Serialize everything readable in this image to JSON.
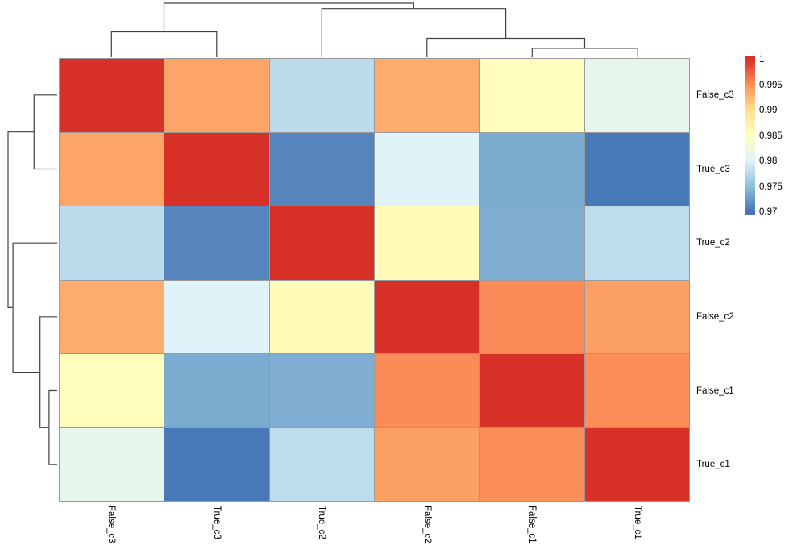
{
  "chart_data": {
    "type": "heatmap",
    "title": "",
    "rows": [
      "False_c3",
      "True_c3",
      "True_c2",
      "False_c2",
      "False_c1",
      "True_c1"
    ],
    "columns": [
      "False_c3",
      "True_c3",
      "True_c2",
      "False_c2",
      "False_c1",
      "True_c1"
    ],
    "matrix": [
      [
        1.0,
        0.9935,
        0.9773,
        0.993,
        0.9851,
        0.9808
      ],
      [
        0.9935,
        1.0,
        0.9706,
        0.9797,
        0.9732,
        0.9697
      ],
      [
        0.9773,
        0.9706,
        1.0,
        0.9853,
        0.9734,
        0.9775
      ],
      [
        0.993,
        0.9797,
        0.9853,
        1.0,
        0.995,
        0.9938
      ],
      [
        0.9851,
        0.9732,
        0.9734,
        0.995,
        1.0,
        0.9949
      ],
      [
        0.9808,
        0.9697,
        0.9775,
        0.9938,
        0.9949,
        1.0
      ]
    ],
    "color_scale": {
      "min": 0.9695,
      "max": 1.0,
      "palette_low_to_high": [
        "#4575B4",
        "#91BFDB",
        "#E0F3F8",
        "#FFFFBF",
        "#FEE090",
        "#FC8D59",
        "#D73027"
      ]
    },
    "legend": {
      "position": "right",
      "ticks": [
        "1",
        "0.995",
        "0.99",
        "0.985",
        "0.98",
        "0.975",
        "0.97"
      ]
    },
    "grid_line_color": "#9a9a9a",
    "dendrogram_line_color": "#404040",
    "clustering": {
      "leaf_order": [
        "False_c3",
        "True_c3",
        "True_c2",
        "False_c2",
        "False_c1",
        "True_c1"
      ],
      "merges": [
        {
          "a": 4,
          "b": 5,
          "height": 0.165
        },
        {
          "a": 3,
          "b": 6,
          "height": 0.35
        },
        {
          "a": 0,
          "b": 1,
          "height": 0.47
        },
        {
          "a": 2,
          "b": 7,
          "height": 0.9
        },
        {
          "a": 8,
          "b": 9,
          "height": 1.0
        }
      ],
      "note_a_b": "indices 0-5 are leaves in leaf_order; 6+ are prior merges",
      "column_dendrogram": true,
      "row_dendrogram": true
    }
  }
}
